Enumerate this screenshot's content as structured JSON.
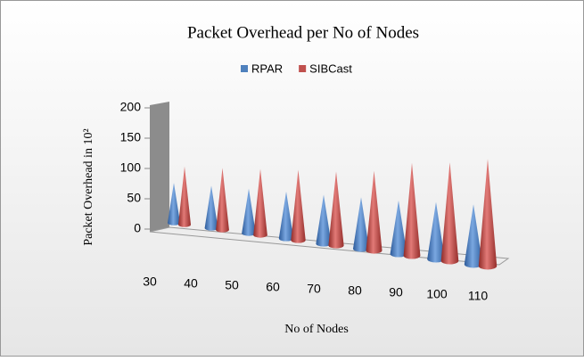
{
  "chart_data": {
    "type": "cone3d",
    "title": "Packet Overhead per No of Nodes",
    "x_label": "No of Nodes",
    "y_label": "Packet Overhead in 10²",
    "categories": [
      "30",
      "40",
      "50",
      "60",
      "70",
      "80",
      "90",
      "100",
      "110"
    ],
    "series": [
      {
        "name": "RPAR",
        "color": "#4f81bd",
        "values": [
          66,
          65,
          64,
          63,
          62,
          62,
          61,
          62,
          62
        ]
      },
      {
        "name": "SIBCast",
        "color": "#c0504d",
        "values": [
          96,
          95,
          95,
          95,
          94,
          96,
          106,
          107,
          111
        ]
      }
    ],
    "ylim": [
      0,
      200
    ],
    "yticks": [
      0,
      50,
      100,
      150,
      200
    ],
    "legend": "top"
  }
}
